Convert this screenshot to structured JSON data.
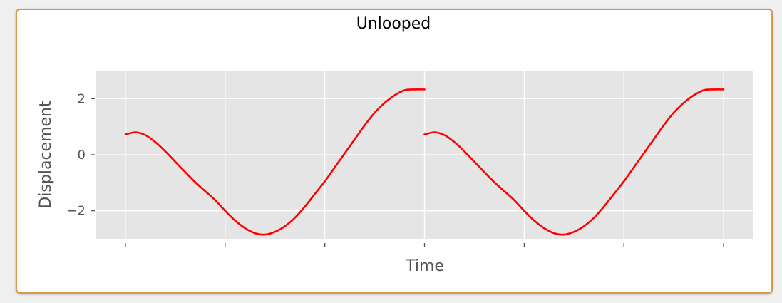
{
  "chart_data": {
    "type": "line",
    "title": "Unlooped",
    "xlabel": "Time",
    "ylabel": "Displacement",
    "ylim": [
      -3.0,
      3.0
    ],
    "yticks": [
      -2,
      0,
      2
    ],
    "ytick_labels": [
      "−2",
      "0",
      "2"
    ],
    "xticks": [
      0,
      1,
      2,
      3,
      4,
      5,
      6
    ],
    "xlim": [
      -0.3,
      6.3
    ],
    "grid": true,
    "colors": {
      "background": "#e5e5e5",
      "grid": "#ffffff",
      "line": "#ff0000",
      "text": "#555555",
      "title": "#000000"
    },
    "series": [
      {
        "color": "#ff0000",
        "x": [
          0,
          0.1,
          0.2,
          0.3,
          0.4,
          0.5,
          0.6,
          0.7,
          0.8,
          0.9,
          1.0,
          1.1,
          1.2,
          1.3,
          1.4,
          1.5,
          1.6,
          1.7,
          1.8,
          1.9,
          2.0,
          2.1,
          2.2,
          2.3,
          2.4,
          2.5,
          2.6,
          2.7,
          2.8,
          2.9,
          3.0
        ],
        "y": [
          0.72,
          0.8,
          0.7,
          0.45,
          0.12,
          -0.25,
          -0.62,
          -0.98,
          -1.3,
          -1.62,
          -2.0,
          -2.35,
          -2.62,
          -2.8,
          -2.85,
          -2.75,
          -2.55,
          -2.25,
          -1.85,
          -1.4,
          -0.95,
          -0.45,
          0.05,
          0.55,
          1.05,
          1.5,
          1.85,
          2.12,
          2.3,
          2.33,
          2.33
        ]
      },
      {
        "color": "#ff0000",
        "x": [
          3.0,
          3.1,
          3.2,
          3.3,
          3.4,
          3.5,
          3.6,
          3.7,
          3.8,
          3.9,
          4.0,
          4.1,
          4.2,
          4.3,
          4.4,
          4.5,
          4.6,
          4.7,
          4.8,
          4.9,
          5.0,
          5.1,
          5.2,
          5.3,
          5.4,
          5.5,
          5.6,
          5.7,
          5.8,
          5.9,
          6.0
        ],
        "y": [
          0.72,
          0.8,
          0.7,
          0.45,
          0.12,
          -0.25,
          -0.62,
          -0.98,
          -1.3,
          -1.62,
          -2.0,
          -2.35,
          -2.62,
          -2.8,
          -2.85,
          -2.75,
          -2.55,
          -2.25,
          -1.85,
          -1.4,
          -0.95,
          -0.45,
          0.05,
          0.55,
          1.05,
          1.5,
          1.85,
          2.12,
          2.3,
          2.33,
          2.33
        ]
      }
    ]
  }
}
